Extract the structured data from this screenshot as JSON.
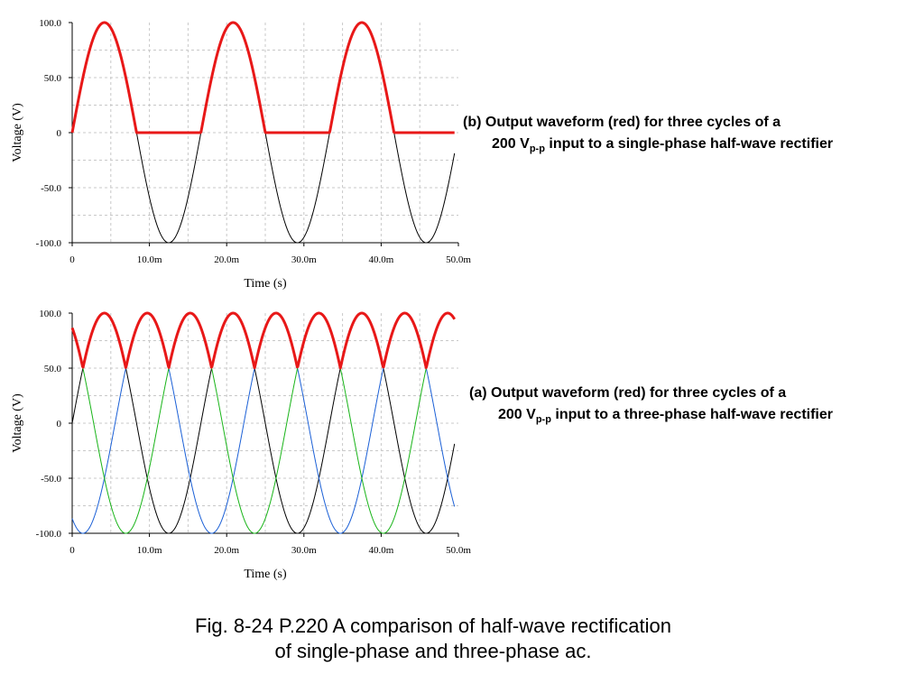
{
  "chart_data": [
    {
      "type": "line",
      "title": "",
      "xlabel": "Time (s)",
      "ylabel": "Voltage (V)",
      "xlim": [
        0,
        0.05
      ],
      "ylim": [
        -100,
        100
      ],
      "xticks": [
        "0",
        "10.0m",
        "20.0m",
        "30.0m",
        "40.0m",
        "50.0m"
      ],
      "yticks": [
        "100.0",
        "50.0",
        "0",
        "-50.0",
        "-100.0"
      ],
      "grid": true,
      "signal": {
        "amplitude": 100,
        "frequency_hz": 60,
        "phases_deg": [
          0
        ]
      },
      "series": [
        {
          "name": "",
          "kind": "input",
          "phase_deg": 0,
          "color": "#000000"
        },
        {
          "name": "",
          "kind": "output_half_wave",
          "color": "#e81818"
        }
      ],
      "caption": {
        "line1": "(b) Output waveform (red) for three cycles of a",
        "line2_pre": "200 V",
        "line2_sub": "p-p",
        "line2_post": " input to a single-phase half-wave rectifier"
      }
    },
    {
      "type": "line",
      "title": "",
      "xlabel": "Time (s)",
      "ylabel": "Voltage (V)",
      "xlim": [
        0,
        0.05
      ],
      "ylim": [
        -100,
        100
      ],
      "xticks": [
        "0",
        "10.0m",
        "20.0m",
        "30.0m",
        "40.0m",
        "50.0m"
      ],
      "yticks": [
        "100.0",
        "50.0",
        "0",
        "-50.0",
        "-100.0"
      ],
      "grid": true,
      "signal": {
        "amplitude": 100,
        "frequency_hz": 60,
        "phases_deg": [
          0,
          -120,
          120
        ]
      },
      "series": [
        {
          "name": "",
          "kind": "input",
          "phase_deg": 0,
          "color": "#000000"
        },
        {
          "name": "",
          "kind": "input",
          "phase_deg": -120,
          "color": "#1a5fd6"
        },
        {
          "name": "",
          "kind": "input",
          "phase_deg": 120,
          "color": "#18b418"
        },
        {
          "name": "",
          "kind": "output_max_of_phases",
          "color": "#e81818"
        }
      ],
      "caption": {
        "line1": "(a) Output waveform (red) for three cycles of a",
        "line2_pre": "200 V",
        "line2_sub": "p-p",
        "line2_post": " input to a three-phase half-wave rectifier"
      }
    }
  ],
  "figure_caption": {
    "line1": "Fig. 8-24 P.220 A comparison of half-wave rectification",
    "line2": "of single-phase and three-phase ac."
  }
}
